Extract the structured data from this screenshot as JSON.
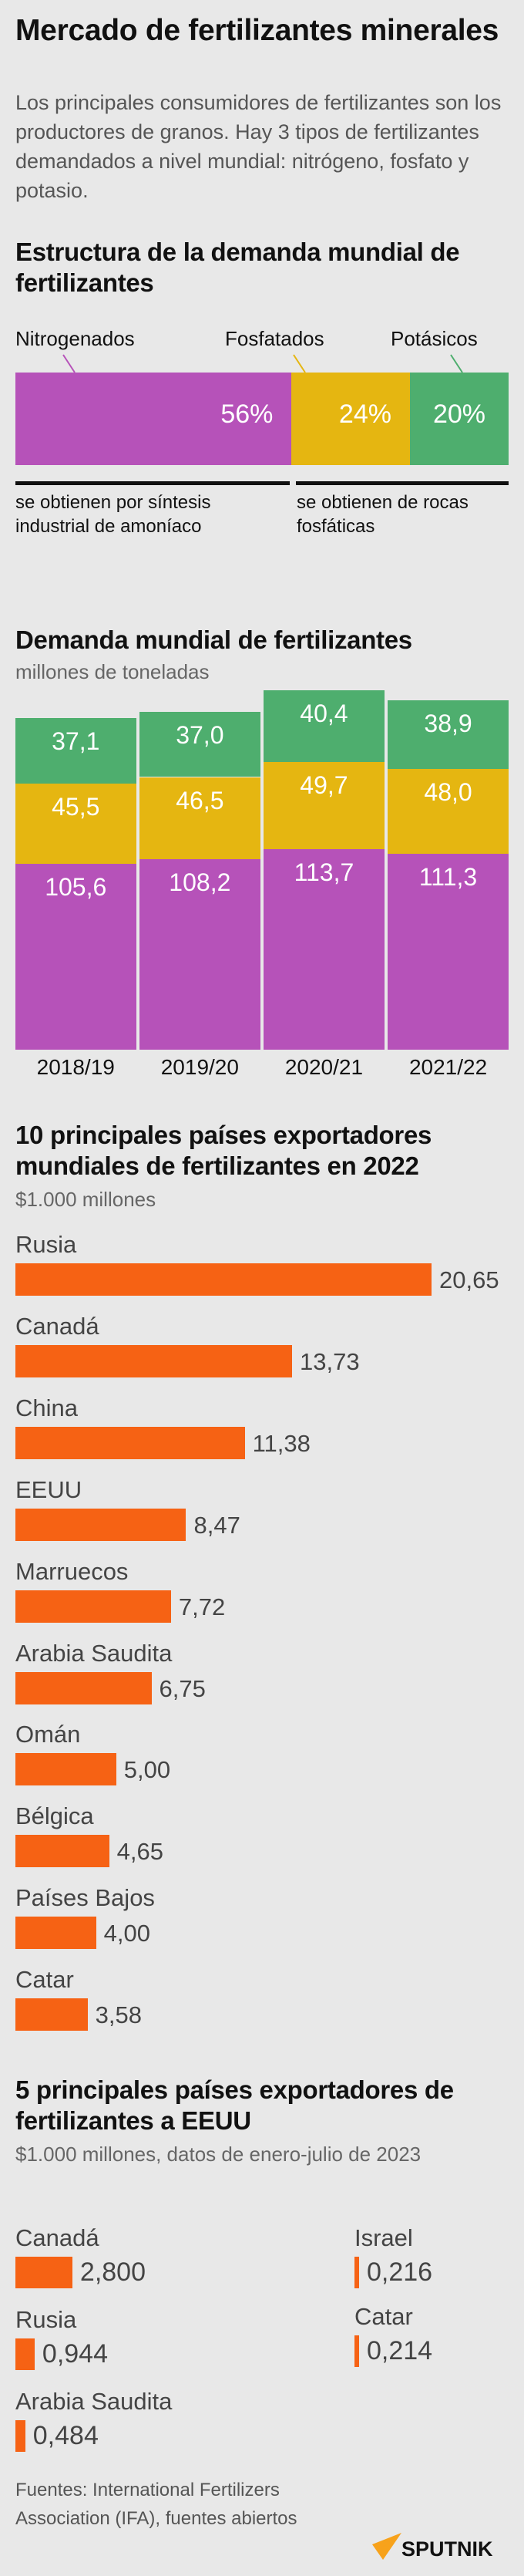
{
  "title": "Mercado de fertilizantes minerales",
  "lead": "Los principales consumidores de fertilizantes son los productores de granos. Hay 3 tipos de fertilizantes demandados a nivel mundial: nitrógeno, fosfato y potasio.",
  "colors": {
    "background": "#e8e8e8",
    "nitrogenados": "#b652b9",
    "fosfatados": "#e5b611",
    "potasicos": "#4eae6e",
    "exports": "#f66214"
  },
  "chart_data": [
    {
      "type": "bar",
      "orientation": "stacked-horizontal",
      "title": "Estructura de la demanda mundial de fertilizantes",
      "categories": [
        "Nitrogenados",
        "Fosfatados",
        "Potásicos"
      ],
      "values": [
        56,
        24,
        20
      ],
      "labels": [
        "56%",
        "24%",
        "20%"
      ],
      "notes": [
        "se obtienen por síntesis industrial de amoníaco",
        "se obtienen de rocas fosfáticas"
      ]
    },
    {
      "type": "bar",
      "orientation": "stacked-vertical",
      "title": "Demanda mundial de fertilizantes",
      "subtitle": "millones de toneladas",
      "categories": [
        "2018/19",
        "2019/20",
        "2020/21",
        "2021/22"
      ],
      "series": [
        {
          "values": [
            105.6,
            108.2,
            113.7,
            111.3
          ],
          "labels": [
            "105,6",
            "108,2",
            "113,7",
            "111,3"
          ]
        },
        {
          "values": [
            45.5,
            46.5,
            49.7,
            48.0
          ],
          "labels": [
            "45,5",
            "46,5",
            "49,7",
            "48,0"
          ]
        },
        {
          "values": [
            37.1,
            37.0,
            40.4,
            38.9
          ],
          "labels": [
            "37,1",
            "37,0",
            "40,4",
            "38,9"
          ]
        }
      ]
    },
    {
      "type": "bar",
      "orientation": "horizontal",
      "title": "10 principales países exportadores mundiales de fertilizantes en 2022",
      "subtitle": "$1.000 millones",
      "categories": [
        "Rusia",
        "Canadá",
        "China",
        "EEUU",
        "Marruecos",
        "Arabia Saudita",
        "Omán",
        "Bélgica",
        "Países Bajos",
        "Catar"
      ],
      "values": [
        20.65,
        13.73,
        11.38,
        8.47,
        7.72,
        6.75,
        5.0,
        4.65,
        4.0,
        3.58
      ],
      "labels": [
        "20,65",
        "13,73",
        "11,38",
        "8,47",
        "7,72",
        "6,75",
        "5,00",
        "4,65",
        "4,00",
        "3,58"
      ]
    },
    {
      "type": "bar",
      "orientation": "horizontal",
      "title": "5 principales países exportadores de fertilizantes a EEUU",
      "subtitle": "$1.000 millones, datos de enero-julio de 2023",
      "categories": [
        "Canadá",
        "Rusia",
        "Arabia Saudita",
        "Israel",
        "Catar"
      ],
      "values": [
        2.8,
        0.944,
        0.484,
        0.216,
        0.214
      ],
      "labels": [
        "2,800",
        "0,944",
        "0,484",
        "0,216",
        "0,214"
      ]
    }
  ],
  "sources": "Fuentes: International Fertilizers Association (IFA), fuentes abiertos",
  "logo": "SPUTNIK"
}
